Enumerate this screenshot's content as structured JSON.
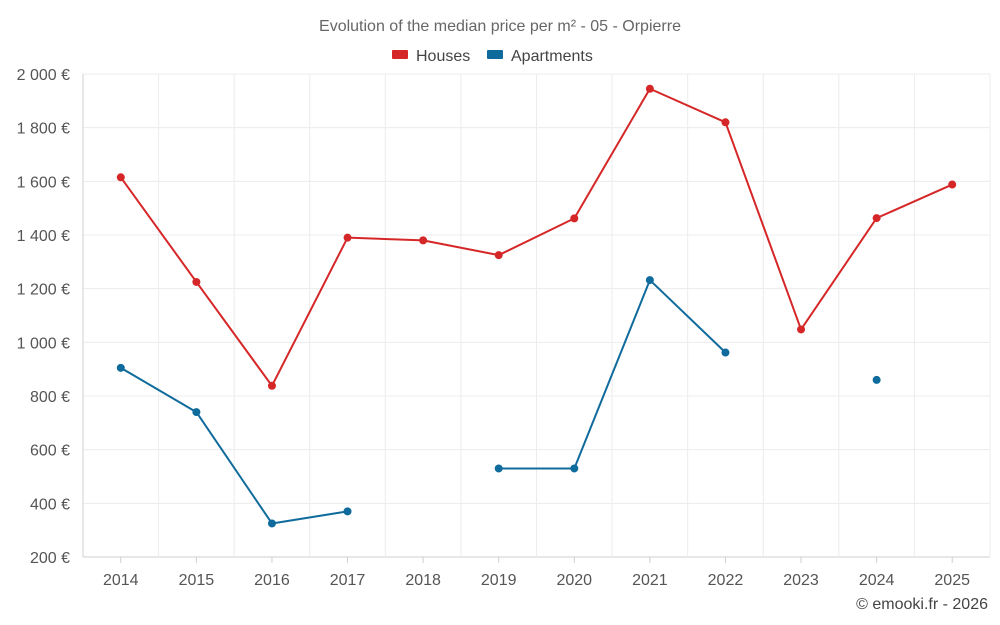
{
  "chart_data": {
    "type": "line",
    "title": "Evolution of the median price per m² - 05 - Orpierre",
    "categories": [
      "2014",
      "2015",
      "2016",
      "2017",
      "2018",
      "2019",
      "2020",
      "2021",
      "2022",
      "2023",
      "2024",
      "2025"
    ],
    "series": [
      {
        "name": "Houses",
        "color": "#d62728",
        "values": [
          1615,
          1225,
          838,
          1390,
          1380,
          1325,
          1462,
          1945,
          1820,
          1048,
          1463,
          1588
        ]
      },
      {
        "name": "Apartments",
        "color": "#0f6b9c",
        "values": [
          905,
          740,
          325,
          370,
          null,
          530,
          530,
          1232,
          962,
          null,
          860,
          null
        ]
      }
    ],
    "ylim": [
      200,
      2000
    ],
    "yticks": [
      200,
      400,
      600,
      800,
      1000,
      1200,
      1400,
      1600,
      1800,
      2000
    ],
    "ytick_labels": [
      "200 €",
      "400 €",
      "600 €",
      "800 €",
      "1 000 €",
      "1 200 €",
      "1 400 €",
      "1 600 €",
      "1 800 €",
      "2 000 €"
    ],
    "grid": true,
    "legend_position": "top-center",
    "xlabel": "",
    "ylabel": ""
  },
  "copyright": "© emooki.fr - 2026"
}
